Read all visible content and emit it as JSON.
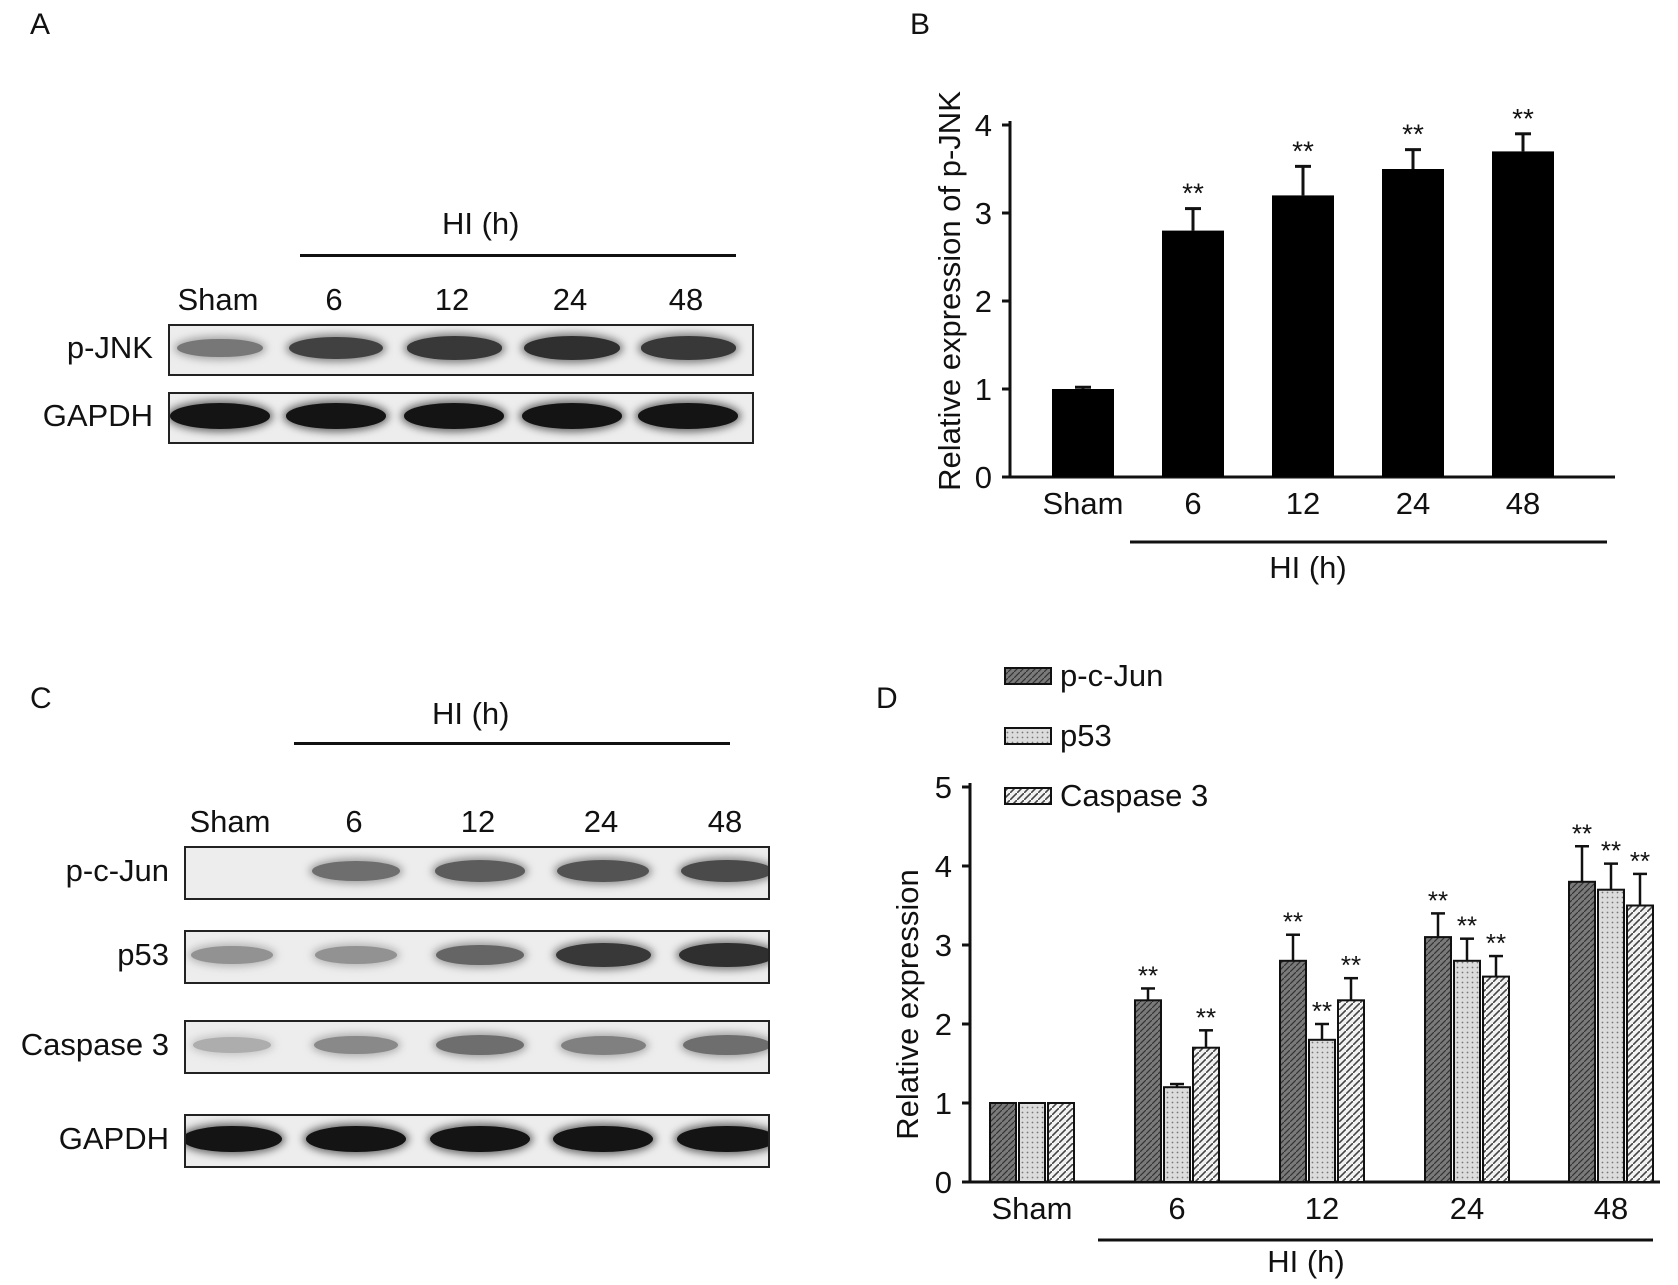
{
  "panels": {
    "a": "A",
    "b": "B",
    "c": "C",
    "d": "D"
  },
  "blot_a": {
    "group_label": "HI (h)",
    "lanes": [
      "Sham",
      "6",
      "12",
      "24",
      "48"
    ],
    "rows": [
      {
        "label": "p-JNK",
        "intensities": [
          0.45,
          0.75,
          0.8,
          0.85,
          0.8
        ]
      },
      {
        "label": "GAPDH",
        "intensities": [
          1,
          1,
          1,
          1,
          1
        ]
      }
    ]
  },
  "blot_c": {
    "group_label": "HI (h)",
    "lanes": [
      "Sham",
      "6",
      "12",
      "24",
      "48"
    ],
    "rows": [
      {
        "label": "p-c-Jun",
        "intensities": [
          0.0,
          0.5,
          0.6,
          0.65,
          0.7
        ]
      },
      {
        "label": "p53",
        "intensities": [
          0.3,
          0.3,
          0.55,
          0.8,
          0.85
        ]
      },
      {
        "label": "Caspase 3",
        "intensities": [
          0.15,
          0.35,
          0.5,
          0.4,
          0.5
        ]
      },
      {
        "label": "GAPDH",
        "intensities": [
          1,
          1,
          1,
          1,
          1
        ]
      }
    ]
  },
  "chart_data": [
    {
      "type": "bar",
      "categories": [
        "Sham",
        "6",
        "12",
        "24",
        "48"
      ],
      "values": [
        1.0,
        2.8,
        3.2,
        3.5,
        3.7
      ],
      "errors": [
        0.02,
        0.25,
        0.33,
        0.22,
        0.2
      ],
      "significance": [
        "",
        "**",
        "**",
        "**",
        "**"
      ],
      "ylabel": "Relative expression of p-JNK",
      "xgroup_label": "HI (h)",
      "ylim": [
        0,
        4
      ],
      "yticks": [
        0,
        1,
        2,
        3,
        4
      ],
      "bar_color": "#000000",
      "grid": false
    },
    {
      "type": "bar",
      "categories": [
        "Sham",
        "6",
        "12",
        "24",
        "48"
      ],
      "series": [
        {
          "name": "p-c-Jun",
          "values": [
            1.0,
            2.3,
            2.8,
            3.1,
            3.8
          ],
          "errors": [
            0,
            0.15,
            0.33,
            0.3,
            0.45
          ],
          "significance": [
            "",
            "**",
            "**",
            "**",
            "**"
          ],
          "color": "#7a7a7a"
        },
        {
          "name": "p53",
          "values": [
            1.0,
            1.2,
            1.8,
            2.8,
            3.7
          ],
          "errors": [
            0,
            0.04,
            0.2,
            0.28,
            0.33
          ],
          "significance": [
            "",
            "",
            "**",
            "**",
            "**"
          ],
          "color": "#dcdcdc"
        },
        {
          "name": "Caspase 3",
          "values": [
            1.0,
            1.7,
            2.3,
            2.6,
            3.5
          ],
          "errors": [
            0,
            0.22,
            0.28,
            0.26,
            0.4
          ],
          "significance": [
            "",
            "**",
            "**",
            "**",
            "**"
          ],
          "color": "#a9a9a9"
        }
      ],
      "ylabel": "Relative expression",
      "xgroup_label": "HI (h)",
      "ylim": [
        0,
        5
      ],
      "yticks": [
        0,
        1,
        2,
        3,
        4,
        5
      ],
      "legend_position": "top",
      "grid": false
    }
  ]
}
